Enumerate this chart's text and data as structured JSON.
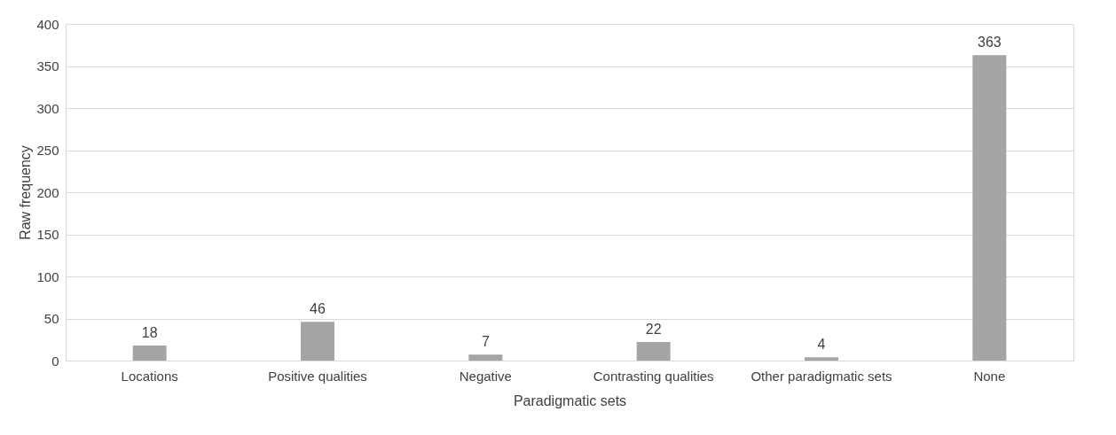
{
  "chart_data": {
    "type": "bar",
    "xlabel": "Paradigmatic sets",
    "ylabel": "Raw frequency",
    "categories": [
      "Locations",
      "Positive qualities",
      "Negative",
      "Contrasting qualities",
      "Other paradigmatic sets",
      "None"
    ],
    "values": [
      18,
      46,
      7,
      22,
      4,
      363
    ],
    "color": "#a5a5a5",
    "ylim": [
      0,
      400
    ],
    "yticks": [
      0,
      50,
      100,
      150,
      200,
      250,
      300,
      350,
      400
    ],
    "grid": "y",
    "data_labels": true
  }
}
